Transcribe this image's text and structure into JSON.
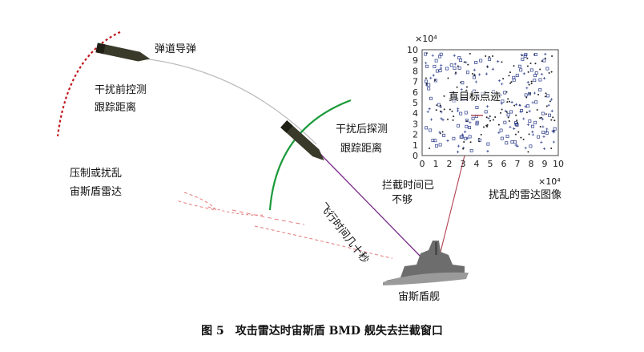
{
  "labels": {
    "ballistic_missile": "弹道导弹",
    "pre_jam_track": [
      "干扰前控测",
      "跟踪距离"
    ],
    "post_jam_track": [
      "干扰后探测",
      "跟踪距离"
    ],
    "suppress_radar": [
      "压制或扰乱",
      "宙斯盾雷达"
    ],
    "flight_time": "飞行时间几十秒",
    "intercept_time": [
      "拦截时间已",
      "不够"
    ],
    "ship": "宙斯盾舰",
    "true_target": "真目标点迹",
    "jammed_image": "扰乱的雷达图像"
  },
  "radar_plot": {
    "y_exponent": "×10⁴",
    "x_exponent": "×10⁴",
    "x_ticks": [
      "0",
      "1",
      "2",
      "3",
      "4",
      "5",
      "6",
      "7",
      "8",
      "9",
      "10"
    ],
    "y_ticks": [
      "0",
      "1",
      "2",
      "3",
      "4",
      "5",
      "6",
      "7",
      "8",
      "9",
      "10"
    ]
  },
  "caption": "图 5　攻击雷达时宙斯盾 BMD 舰失去拦截窗口",
  "colors": {
    "pre_jam_arc": "#c0161c",
    "post_jam_arc": "#1a9a3a",
    "trajectory": "#bbbbbb",
    "flight_path": "#7a2a8a",
    "pointer": "#b04050",
    "plot_points": "#2a3a8a"
  }
}
